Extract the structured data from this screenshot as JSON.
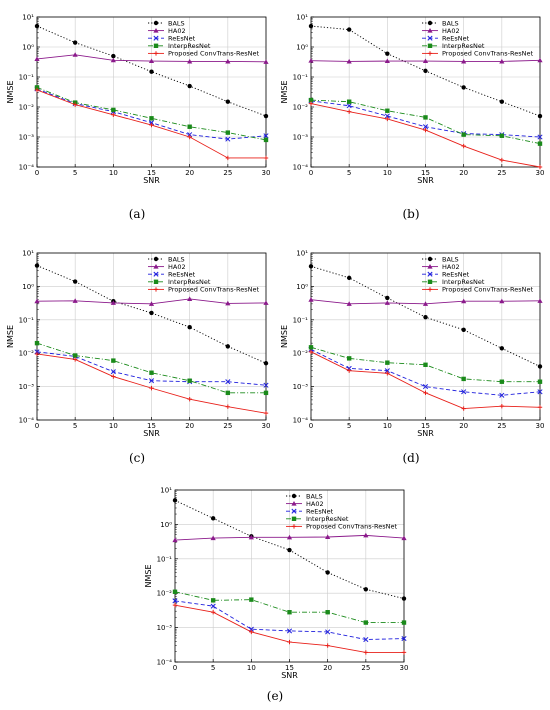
{
  "colors": {
    "BALS": "#000000",
    "HA02": "#8b1a8b",
    "ReEsNet": "#1f1fdd",
    "InterpResNet": "#1a8a1a",
    "Proposed ConvTrans-ResNet": "#e8201a"
  },
  "chart_data": [
    {
      "type": "line",
      "caption": "(a)",
      "xlabel": "SNR",
      "ylabel": "NMSE",
      "yscale": "log",
      "xlim": [
        0,
        30
      ],
      "ylim": [
        0.0001,
        10
      ],
      "x": [
        0,
        5,
        10,
        15,
        20,
        25,
        30
      ],
      "xticks": [
        "0",
        "5",
        "10",
        "15",
        "20",
        "25",
        "30"
      ],
      "yticks": [
        "10⁻⁴",
        "10⁻³",
        "10⁻²",
        "10⁻¹",
        "10⁰",
        "10¹"
      ],
      "legend": "top-right",
      "series": [
        {
          "name": "BALS",
          "values": [
            5.0,
            1.4,
            0.5,
            0.15,
            0.05,
            0.015,
            0.005
          ]
        },
        {
          "name": "HA02",
          "values": [
            0.4,
            0.55,
            0.36,
            0.34,
            0.33,
            0.33,
            0.32
          ]
        },
        {
          "name": "ReEsNet",
          "values": [
            0.04,
            0.013,
            0.007,
            0.003,
            0.0012,
            0.00085,
            0.0011
          ]
        },
        {
          "name": "InterpResNet",
          "values": [
            0.045,
            0.014,
            0.008,
            0.0042,
            0.0022,
            0.0014,
            0.0008
          ]
        },
        {
          "name": "Proposed ConvTrans-ResNet",
          "values": [
            0.037,
            0.012,
            0.0055,
            0.0025,
            0.001,
            0.0002,
            0.0002
          ]
        }
      ]
    },
    {
      "type": "line",
      "caption": "(b)",
      "xlabel": "SNR",
      "ylabel": "NMSE",
      "yscale": "log",
      "xlim": [
        0,
        30
      ],
      "ylim": [
        0.0001,
        10
      ],
      "x": [
        0,
        5,
        10,
        15,
        20,
        25,
        30
      ],
      "xticks": [
        "0",
        "5",
        "10",
        "15",
        "20",
        "25",
        "30"
      ],
      "yticks": [
        "10⁻⁴",
        "10⁻³",
        "10⁻²",
        "10⁻¹",
        "10⁰",
        "10¹"
      ],
      "legend": "top-right",
      "series": [
        {
          "name": "BALS",
          "values": [
            5.0,
            3.8,
            0.6,
            0.16,
            0.045,
            0.015,
            0.005
          ]
        },
        {
          "name": "HA02",
          "values": [
            0.35,
            0.33,
            0.34,
            0.34,
            0.33,
            0.33,
            0.36
          ]
        },
        {
          "name": "ReEsNet",
          "values": [
            0.016,
            0.011,
            0.005,
            0.0022,
            0.0013,
            0.0012,
            0.001
          ]
        },
        {
          "name": "InterpResNet",
          "values": [
            0.017,
            0.015,
            0.0075,
            0.0045,
            0.0012,
            0.0011,
            0.0006
          ]
        },
        {
          "name": "Proposed ConvTrans-ResNet",
          "values": [
            0.013,
            0.007,
            0.004,
            0.0017,
            0.0005,
            0.00017,
            0.0001
          ]
        }
      ]
    },
    {
      "type": "line",
      "caption": "(c)",
      "xlabel": "SNR",
      "ylabel": "NMSE",
      "yscale": "log",
      "xlim": [
        0,
        30
      ],
      "ylim": [
        0.0001,
        10
      ],
      "x": [
        0,
        5,
        10,
        15,
        20,
        25,
        30
      ],
      "xticks": [
        "0",
        "5",
        "10",
        "15",
        "20",
        "25",
        "30"
      ],
      "yticks": [
        "10⁻⁴",
        "10⁻³",
        "10⁻²",
        "10⁻¹",
        "10⁰",
        "10¹"
      ],
      "legend": "top-right",
      "series": [
        {
          "name": "BALS",
          "values": [
            4.2,
            1.4,
            0.36,
            0.16,
            0.06,
            0.016,
            0.005
          ]
        },
        {
          "name": "HA02",
          "values": [
            0.36,
            0.37,
            0.32,
            0.3,
            0.42,
            0.31,
            0.32
          ]
        },
        {
          "name": "ReEsNet",
          "values": [
            0.011,
            0.008,
            0.0028,
            0.0015,
            0.0014,
            0.0014,
            0.0011
          ]
        },
        {
          "name": "InterpResNet",
          "values": [
            0.02,
            0.0085,
            0.006,
            0.0026,
            0.0015,
            0.00065,
            0.00065
          ]
        },
        {
          "name": "Proposed ConvTrans-ResNet",
          "values": [
            0.0095,
            0.0065,
            0.002,
            0.0009,
            0.00042,
            0.00025,
            0.00016
          ]
        }
      ]
    },
    {
      "type": "line",
      "caption": "(d)",
      "xlabel": "SNR",
      "ylabel": "NMSE",
      "yscale": "log",
      "xlim": [
        0,
        30
      ],
      "ylim": [
        0.0001,
        10
      ],
      "x": [
        0,
        5,
        10,
        15,
        20,
        25,
        30
      ],
      "xticks": [
        "0",
        "5",
        "10",
        "15",
        "20",
        "25",
        "30"
      ],
      "yticks": [
        "10⁻⁴",
        "10⁻³",
        "10⁻²",
        "10⁻¹",
        "10⁰",
        "10¹"
      ],
      "legend": "top-right",
      "series": [
        {
          "name": "BALS",
          "values": [
            4.0,
            1.8,
            0.45,
            0.12,
            0.05,
            0.014,
            0.004
          ]
        },
        {
          "name": "HA02",
          "values": [
            0.4,
            0.3,
            0.32,
            0.3,
            0.36,
            0.36,
            0.37
          ]
        },
        {
          "name": "ReEsNet",
          "values": [
            0.013,
            0.0035,
            0.003,
            0.001,
            0.0007,
            0.00055,
            0.0007
          ]
        },
        {
          "name": "InterpResNet",
          "values": [
            0.015,
            0.007,
            0.0052,
            0.0045,
            0.0017,
            0.0014,
            0.0014
          ]
        },
        {
          "name": "Proposed ConvTrans-ResNet",
          "values": [
            0.011,
            0.003,
            0.0025,
            0.00065,
            0.00022,
            0.00026,
            0.00024
          ]
        }
      ]
    },
    {
      "type": "line",
      "caption": "(e)",
      "xlabel": "SNR",
      "ylabel": "NMSE",
      "yscale": "log",
      "xlim": [
        0,
        30
      ],
      "ylim": [
        0.0001,
        10
      ],
      "x": [
        0,
        5,
        10,
        15,
        20,
        25,
        30
      ],
      "xticks": [
        "0",
        "5",
        "10",
        "15",
        "20",
        "25",
        "30"
      ],
      "yticks": [
        "10⁻⁴",
        "10⁻³",
        "10⁻²",
        "10⁻¹",
        "10⁰",
        "10¹"
      ],
      "legend": "top-right",
      "series": [
        {
          "name": "BALS",
          "values": [
            5.0,
            1.5,
            0.45,
            0.18,
            0.04,
            0.013,
            0.007
          ]
        },
        {
          "name": "HA02",
          "values": [
            0.35,
            0.4,
            0.42,
            0.42,
            0.43,
            0.48,
            0.4
          ]
        },
        {
          "name": "ReEsNet",
          "values": [
            0.006,
            0.0042,
            0.0009,
            0.0008,
            0.00075,
            0.00045,
            0.00048
          ]
        },
        {
          "name": "InterpResNet",
          "values": [
            0.011,
            0.0062,
            0.0065,
            0.0028,
            0.0028,
            0.0014,
            0.0014
          ]
        },
        {
          "name": "Proposed ConvTrans-ResNet",
          "values": [
            0.0045,
            0.0028,
            0.00075,
            0.00038,
            0.0003,
            0.00019,
            0.00019
          ]
        }
      ]
    }
  ]
}
